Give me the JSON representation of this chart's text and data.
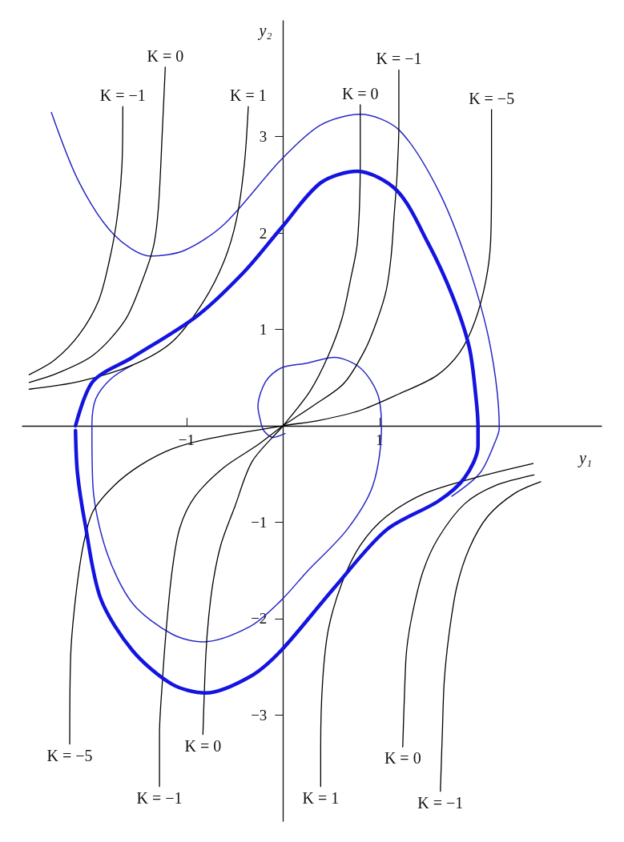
{
  "chart_data": {
    "type": "line",
    "xlabel": "y₁",
    "ylabel": "y₂",
    "xlim": [
      -2.7,
      3.3
    ],
    "ylim": [
      -4.1,
      4.2
    ],
    "xticks": [
      {
        "value": -1,
        "label": "−1"
      },
      1
    ],
    "yticks": [
      {
        "value": -3,
        "label": "−3"
      },
      {
        "value": -2,
        "label": "−2"
      },
      {
        "value": -1,
        "label": "−1"
      },
      1,
      2,
      3
    ],
    "grid": false,
    "marker": "none",
    "line_style": "solid",
    "series": [
      {
        "color": "#1414e0",
        "x": [
          -2.15,
          -1.97,
          -1.56,
          -0.89,
          -0.4,
          -0.02,
          0.39,
          0.77,
          1.18,
          1.5,
          1.75,
          1.93,
          2.0,
          2.02,
          2.02,
          1.88,
          1.61,
          1.07,
          0.53,
          -0.02,
          -0.34,
          -0.8,
          -1.15,
          -1.56,
          -1.89,
          -2.05,
          -2.13,
          -2.15
        ],
        "values": [
          0,
          0.46,
          0.71,
          1.14,
          1.6,
          2.05,
          2.52,
          2.64,
          2.44,
          1.9,
          1.36,
          0.81,
          0.28,
          -0.02,
          -0.21,
          -0.54,
          -0.78,
          -1.08,
          -1.68,
          -2.33,
          -2.6,
          -2.77,
          -2.68,
          -2.33,
          -1.79,
          -1.02,
          -0.49,
          -0.05
        ]
      },
      {
        "color": "#2828c8",
        "x": [
          -2.4,
          -2.11,
          -1.75,
          -1.37,
          -1.02,
          -0.61,
          -0.02,
          0.39,
          0.8,
          1.2,
          1.61,
          1.93,
          2.15,
          2.24,
          2.2,
          2.04,
          1.75
        ],
        "values": [
          3.25,
          2.52,
          1.98,
          1.76,
          1.82,
          2.09,
          2.76,
          3.12,
          3.23,
          3.07,
          2.44,
          1.63,
          0.81,
          -0.02,
          -0.16,
          -0.49,
          -0.73
        ]
      },
      {
        "color": "#2828c8",
        "x": [
          0.02,
          -0.1,
          -0.2,
          -0.24,
          -0.26,
          -0.18,
          -0.02,
          0.25,
          0.53,
          0.8,
          0.98,
          1.02,
          0.93,
          0.66,
          0.25,
          -0.02,
          -0.34,
          -0.83,
          -1.15,
          -1.56,
          -1.83,
          -1.97,
          -1.98,
          -1.94,
          -1.78,
          -1.56
        ],
        "values": [
          -0.08,
          -0.12,
          -0.05,
          0.08,
          0.2,
          0.46,
          0.6,
          0.65,
          0.71,
          0.6,
          0.33,
          -0.02,
          -0.62,
          -1.08,
          -1.51,
          -1.81,
          -2.08,
          -2.24,
          -2.16,
          -1.84,
          -1.3,
          -0.62,
          0,
          0.28,
          0.49,
          0.63
        ]
      },
      {
        "name": "K = −1",
        "color": "#000000",
        "x": [
          -2.63,
          -2.37,
          -2.11,
          -1.91,
          -1.8,
          -1.72,
          -1.67,
          -1.66
        ],
        "values": [
          0.53,
          0.68,
          0.95,
          1.3,
          1.71,
          2.15,
          2.68,
          3.31
        ]
      },
      {
        "name": "K = 0",
        "color": "#000000",
        "x": [
          -2.63,
          -2.35,
          -1.97,
          -1.64,
          -1.46,
          -1.34,
          -1.29,
          -1.25,
          -1.22
        ],
        "values": [
          0.45,
          0.54,
          0.73,
          1.09,
          1.5,
          1.87,
          2.28,
          3.07,
          3.72
        ]
      },
      {
        "name": "K = 1",
        "color": "#000000",
        "x": [
          -2.63,
          -2.11,
          -1.56,
          -1.15,
          -0.83,
          -0.61,
          -0.48,
          -0.4,
          -0.36
        ],
        "values": [
          0.38,
          0.46,
          0.63,
          0.87,
          1.28,
          1.71,
          2.15,
          2.72,
          3.31
        ]
      },
      {
        "name": "K = 0",
        "color": "#000000",
        "x": [
          -0.83,
          -0.8,
          -0.77,
          -0.72,
          -0.64,
          -0.5,
          -0.32,
          0,
          0.28,
          0.47,
          0.61,
          0.7,
          0.77,
          0.8,
          0.8
        ],
        "values": [
          -3.2,
          -2.38,
          -1.98,
          -1.59,
          -1.22,
          -0.84,
          -0.37,
          0,
          0.36,
          0.73,
          1.11,
          1.52,
          1.9,
          2.72,
          3.33
        ]
      },
      {
        "name": "K = −1",
        "color": "#000000",
        "x": [
          -1.28,
          -1.28,
          -1.25,
          -1.21,
          -1.15,
          -1.07,
          -0.91,
          -0.61,
          -0.28,
          0,
          0.33,
          0.63,
          0.85,
          0.98,
          1.07,
          1.12,
          1.15,
          1.18,
          1.2,
          1.2
        ],
        "values": [
          -3.74,
          -3.2,
          -2.65,
          -2.11,
          -1.51,
          -1.06,
          -0.73,
          -0.43,
          -0.21,
          0,
          0.22,
          0.44,
          0.79,
          1.11,
          1.41,
          1.76,
          2.17,
          2.58,
          3.12,
          3.69
        ]
      },
      {
        "name": "K = −5",
        "color": "#000000",
        "x": [
          -2.21,
          -2.2,
          -2.15,
          -2.07,
          -1.97,
          -1.75,
          -1.48,
          -1.15,
          -0.75,
          0,
          0.39,
          0.8,
          1.2,
          1.59,
          1.83,
          1.99,
          2.1,
          2.15,
          2.16,
          2.16
        ],
        "values": [
          -3.3,
          -2.38,
          -1.79,
          -1.24,
          -0.89,
          -0.62,
          -0.41,
          -0.24,
          -0.13,
          0,
          0.06,
          0.16,
          0.33,
          0.52,
          0.76,
          1.09,
          1.5,
          1.9,
          2.58,
          3.28
        ]
      },
      {
        "name": "K = 1",
        "color": "#000000",
        "x": [
          2.59,
          2.02,
          1.47,
          1.07,
          0.8,
          0.61,
          0.47,
          0.41,
          0.39,
          0.39
        ],
        "values": [
          -0.39,
          -0.53,
          -0.7,
          -0.94,
          -1.24,
          -1.63,
          -2.11,
          -2.65,
          -3.33,
          -3.74
        ]
      },
      {
        "name": "K = 0",
        "color": "#000000",
        "x": [
          2.6,
          2.2,
          1.88,
          1.61,
          1.45,
          1.34,
          1.28,
          1.26,
          1.24
        ],
        "values": [
          -0.51,
          -0.62,
          -0.81,
          -1.16,
          -1.51,
          -1.95,
          -2.33,
          -2.73,
          -3.33
        ]
      },
      {
        "name": "K = −1",
        "color": "#000000",
        "x": [
          2.67,
          2.4,
          2.12,
          1.93,
          1.8,
          1.72,
          1.67,
          1.65,
          1.63
        ],
        "values": [
          -0.58,
          -0.7,
          -0.94,
          -1.27,
          -1.67,
          -2.16,
          -2.65,
          -3.2,
          -3.79
        ]
      }
    ]
  }
}
